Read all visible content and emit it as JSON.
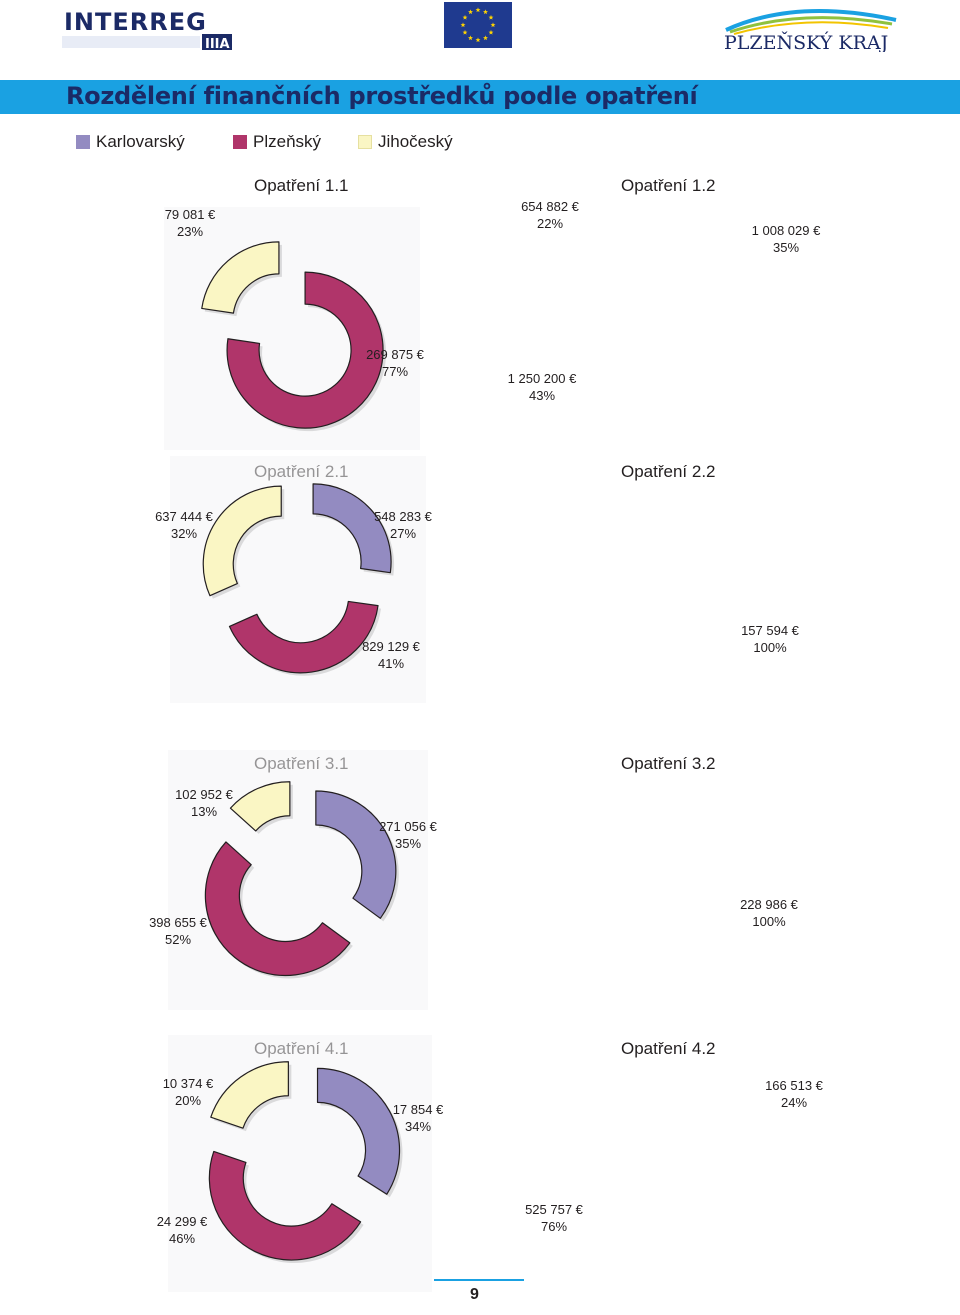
{
  "header": {
    "logo_interreg": "INTERREG IIIA",
    "logo_region": "PLZEŇSKÝ KRAJ",
    "title": "Rozdělení finančních prostředků podle opatření"
  },
  "colors": {
    "karlovarsky": "#938bc1",
    "plzensky": "#b0356a",
    "jihocesky": "#faf6c4",
    "title_bar": "#1aa1e2",
    "title_text": "#1b2a66"
  },
  "legend": [
    {
      "label": "Karlovarský",
      "color": "#938bc1"
    },
    {
      "label": "Plzeňský",
      "color": "#b0356a"
    },
    {
      "label": "Jihočeský",
      "color": "#faf6c4"
    }
  ],
  "chart_data": [
    {
      "type": "pie",
      "title": "Opatření 1.1",
      "slices": [
        {
          "series": "Jihočeský",
          "value": 79081,
          "amount": "79 081 €",
          "percent": "23%"
        },
        {
          "series": "Plzeňský",
          "value": 269875,
          "amount": "269 875 €",
          "percent": "77%"
        }
      ]
    },
    {
      "type": "pie",
      "title": "Opatření 1.2",
      "slices": [
        {
          "series": "Jihočeský",
          "value": 654882,
          "amount": "654 882 €",
          "percent": "22%"
        },
        {
          "series": "Karlovarský",
          "value": 1008029,
          "amount": "1 008 029 €",
          "percent": "35%"
        },
        {
          "series": "Plzeňský",
          "value": 1250200,
          "amount": "1 250 200 €",
          "percent": "43%"
        }
      ]
    },
    {
      "type": "pie",
      "title": "Opatření 2.1",
      "slices": [
        {
          "series": "Jihočeský",
          "value": 637444,
          "amount": "637 444 €",
          "percent": "32%"
        },
        {
          "series": "Karlovarský",
          "value": 548283,
          "amount": "548 283 €",
          "percent": "27%"
        },
        {
          "series": "Plzeňský",
          "value": 829129,
          "amount": "829 129 €",
          "percent": "41%"
        }
      ]
    },
    {
      "type": "pie",
      "title": "Opatření 2.2",
      "slices": [
        {
          "series": "Plzeňský",
          "value": 157594,
          "amount": "157 594 €",
          "percent": "100%"
        }
      ]
    },
    {
      "type": "pie",
      "title": "Opatření 3.1",
      "slices": [
        {
          "series": "Jihočeský",
          "value": 102952,
          "amount": "102 952 €",
          "percent": "13%"
        },
        {
          "series": "Karlovarský",
          "value": 271056,
          "amount": "271 056 €",
          "percent": "35%"
        },
        {
          "series": "Plzeňský",
          "value": 398655,
          "amount": "398 655 €",
          "percent": "52%"
        }
      ]
    },
    {
      "type": "pie",
      "title": "Opatření 3.2",
      "slices": [
        {
          "series": "Plzeňský",
          "value": 228986,
          "amount": "228 986 €",
          "percent": "100%"
        }
      ]
    },
    {
      "type": "pie",
      "title": "Opatření 4.1",
      "slices": [
        {
          "series": "Jihočeský",
          "value": 10374,
          "amount": "10 374 €",
          "percent": "20%"
        },
        {
          "series": "Karlovarský",
          "value": 17854,
          "amount": "17 854 €",
          "percent": "34%"
        },
        {
          "series": "Plzeňský",
          "value": 24299,
          "amount": "24 299 €",
          "percent": "46%"
        }
      ]
    },
    {
      "type": "pie",
      "title": "Opatření 4.2",
      "slices": [
        {
          "series": "Karlovarský",
          "value": 166513,
          "amount": "166 513 €",
          "percent": "24%"
        },
        {
          "series": "Plzeňský",
          "value": 525757,
          "amount": "525 757 €",
          "percent": "76%"
        }
      ]
    }
  ],
  "footer": {
    "page_number": "9"
  }
}
